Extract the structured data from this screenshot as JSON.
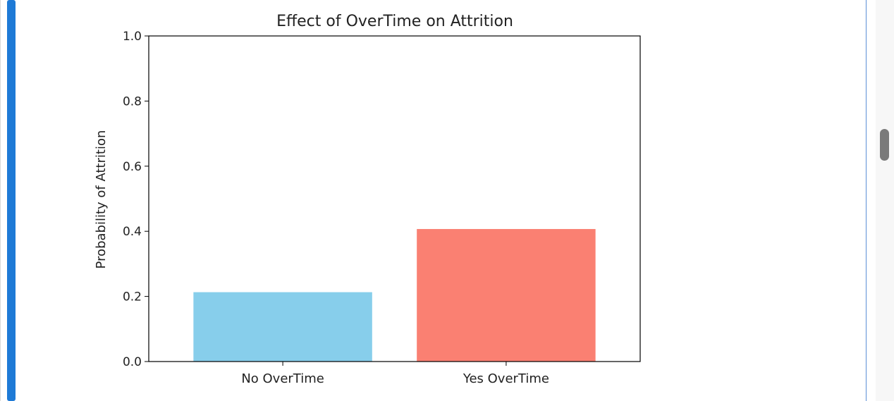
{
  "chart_data": {
    "type": "bar",
    "title": "Effect of OverTime on Attrition",
    "xlabel": "",
    "ylabel": "Probability of Attrition",
    "categories": [
      "No OverTime",
      "Yes OverTime"
    ],
    "values": [
      0.213,
      0.407
    ],
    "colors": [
      "#87ceeb",
      "#fa8072"
    ],
    "ylim": [
      0,
      1.0
    ],
    "yticks": [
      "0.0",
      "0.2",
      "0.4",
      "0.6",
      "0.8",
      "1.0"
    ],
    "grid": false,
    "legend": false
  }
}
